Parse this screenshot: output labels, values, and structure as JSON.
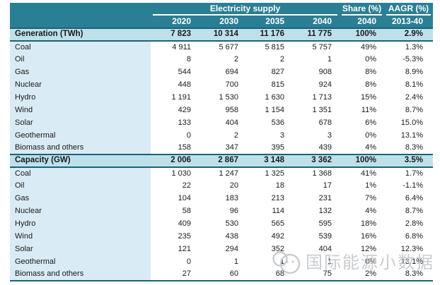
{
  "chart_data": {
    "type": "table",
    "title": "Electricity supply",
    "header": {
      "group_title": "Electricity supply",
      "share_title": "Share (%)",
      "aagr_title": "AAGR (%)",
      "years": [
        "2020",
        "2030",
        "2035",
        "2040"
      ],
      "share_year": "2040",
      "aagr_period": "2013-40"
    },
    "sections": [
      {
        "title": "Generation (TWh)",
        "totals": [
          "7 823",
          "10 314",
          "11 176",
          "11 775",
          "100%",
          "2.9%"
        ],
        "rows": [
          {
            "label": "Coal",
            "values": [
              "4 911",
              "5 677",
              "5 815",
              "5 757",
              "49%",
              "1.3%"
            ]
          },
          {
            "label": "Oil",
            "values": [
              "8",
              "2",
              "2",
              "1",
              "0%",
              "-5.3%"
            ]
          },
          {
            "label": "Gas",
            "values": [
              "544",
              "694",
              "827",
              "908",
              "8%",
              "8.9%"
            ]
          },
          {
            "label": "Nuclear",
            "values": [
              "448",
              "700",
              "815",
              "924",
              "8%",
              "8.1%"
            ]
          },
          {
            "label": "Hydro",
            "values": [
              "1 191",
              "1 530",
              "1 630",
              "1 713",
              "15%",
              "2.4%"
            ]
          },
          {
            "label": "Wind",
            "values": [
              "429",
              "958",
              "1 154",
              "1 351",
              "11%",
              "8.7%"
            ]
          },
          {
            "label": "Solar",
            "values": [
              "133",
              "404",
              "536",
              "678",
              "6%",
              "15.0%"
            ]
          },
          {
            "label": "Geothermal",
            "values": [
              "0",
              "2",
              "3",
              "3",
              "0%",
              "13.1%"
            ]
          },
          {
            "label": "Biomass and others",
            "values": [
              "158",
              "347",
              "395",
              "439",
              "4%",
              "8.3%"
            ]
          }
        ]
      },
      {
        "title": "Capacity (GW)",
        "totals": [
          "2 006",
          "2 867",
          "3 148",
          "3 362",
          "100%",
          "3.5%"
        ],
        "rows": [
          {
            "label": "Coal",
            "values": [
              "1 030",
              "1 247",
              "1 325",
              "1 368",
              "41%",
              "1.7%"
            ]
          },
          {
            "label": "Oil",
            "values": [
              "22",
              "20",
              "18",
              "17",
              "1%",
              "-1.1%"
            ]
          },
          {
            "label": "Gas",
            "values": [
              "104",
              "183",
              "213",
              "231",
              "7%",
              "6.4%"
            ]
          },
          {
            "label": "Nuclear",
            "values": [
              "58",
              "96",
              "114",
              "132",
              "4%",
              "8.7%"
            ]
          },
          {
            "label": "Hydro",
            "values": [
              "409",
              "530",
              "565",
              "595",
              "18%",
              "2.8%"
            ]
          },
          {
            "label": "Wind",
            "values": [
              "235",
              "438",
              "492",
              "539",
              "16%",
              "6.8%"
            ]
          },
          {
            "label": "Solar",
            "values": [
              "121",
              "294",
              "352",
              "404",
              "12%",
              "12.3%"
            ]
          },
          {
            "label": "Geothermal",
            "values": [
              "0",
              "1",
              "1",
              "1",
              "0%",
              "13.1%"
            ]
          },
          {
            "label": "Biomass and others",
            "values": [
              "27",
              "60",
              "68",
              "75",
              "2%",
              "8.3%"
            ]
          }
        ]
      }
    ]
  },
  "watermark": {
    "text": "国际能源小数据",
    "icon": "chat-bubbles-icon"
  },
  "colors": {
    "header_teal": "#2b7f94",
    "dark_border": "#1a6378",
    "section_row_bg": "#bee0eb",
    "label_col_bg": "#d9ebf4",
    "watermark_grey": "#c3c7cb"
  }
}
